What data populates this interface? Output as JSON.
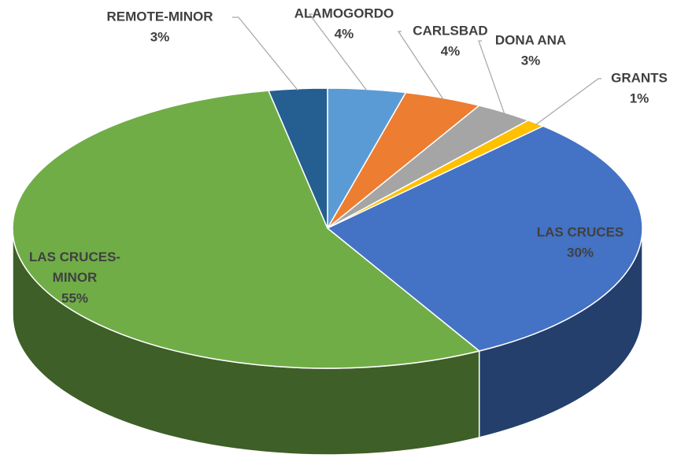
{
  "chart_data": {
    "type": "pie",
    "categories": [
      "ALAMOGORDO",
      "CARLSBAD",
      "DONA ANA",
      "GRANTS",
      "LAS CRUCES",
      "LAS CRUCES-MINOR",
      "REMOTE-MINOR"
    ],
    "values": [
      4,
      4,
      3,
      1,
      30,
      55,
      3
    ],
    "value_labels": [
      "4%",
      "4%",
      "3%",
      "1%",
      "30%",
      "55%",
      "3%"
    ],
    "colors": [
      "#5b9bd5",
      "#ed7d31",
      "#a5a5a5",
      "#ffc000",
      "#4472c4",
      "#70ad47",
      "#255e91"
    ]
  }
}
